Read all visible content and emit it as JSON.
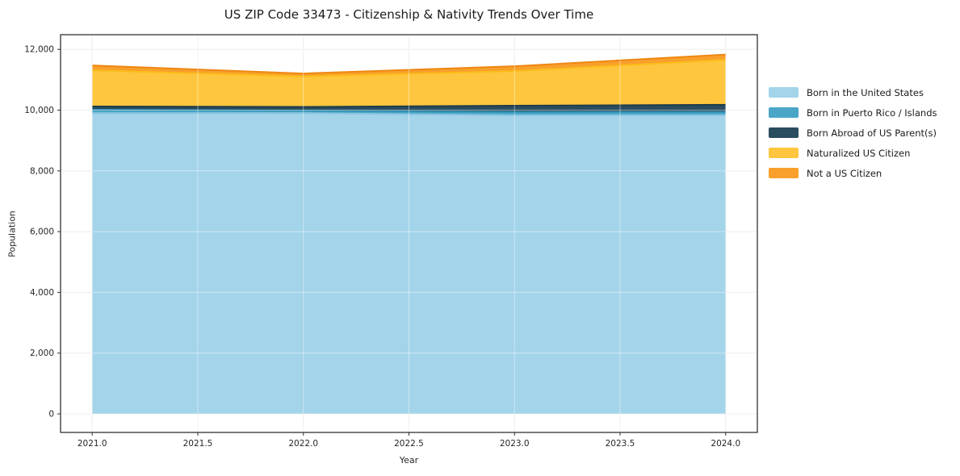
{
  "title": "US ZIP Code 33473 - Citizenship & Nativity Trends Over Time",
  "chart_data": {
    "type": "area",
    "stacked": true,
    "title": "US ZIP Code 33473 - Citizenship & Nativity Trends Over Time",
    "xlabel": "Year",
    "ylabel": "Population",
    "x": [
      2021,
      2022,
      2023,
      2024
    ],
    "series": [
      {
        "name": "Born in the United States",
        "values": [
          9900,
          9900,
          9830,
          9830
        ],
        "fill": "#a3d4ea",
        "line": "#8cc5e0"
      },
      {
        "name": "Born in Puerto Rico / Islands",
        "values": [
          110,
          80,
          105,
          105
        ],
        "fill": "#4aa6c7",
        "line": "#2f94b6"
      },
      {
        "name": "Born Abroad of US Parent(s)",
        "values": [
          110,
          125,
          210,
          240
        ],
        "fill": "#2a4d60",
        "line": "#1e3c4c"
      },
      {
        "name": "Naturalized US Citizen",
        "values": [
          1190,
          1000,
          1140,
          1480
        ],
        "fill": "#fdc63e",
        "line": "#fcbd1b"
      },
      {
        "name": "Not a US Citizen",
        "values": [
          160,
          100,
          160,
          175
        ],
        "fill": "#f8a02b",
        "line": "#ee8712"
      }
    ],
    "totals": [
      11470,
      11205,
      11445,
      11830
    ],
    "xlim": [
      2020.85,
      2024.15
    ],
    "ylim": [
      -611,
      12483
    ],
    "xticks": {
      "values": [
        2021,
        2021.5,
        2022,
        2022.5,
        2023,
        2023.5,
        2024
      ],
      "labels": [
        "2021.0",
        "2021.5",
        "2022.0",
        "2022.5",
        "2023.0",
        "2023.5",
        "2024.0"
      ]
    },
    "yticks": {
      "values": [
        0,
        2000,
        4000,
        6000,
        8000,
        10000,
        12000
      ],
      "labels": [
        "0",
        "2,000",
        "4,000",
        "6,000",
        "8,000",
        "10,000",
        "12,000"
      ]
    },
    "grid": true,
    "legend_position": "right-outside",
    "colors": {
      "background": "#ffffff",
      "gridline": "#e4e4e4",
      "axis_border": "#333333",
      "text": "#262626"
    }
  }
}
